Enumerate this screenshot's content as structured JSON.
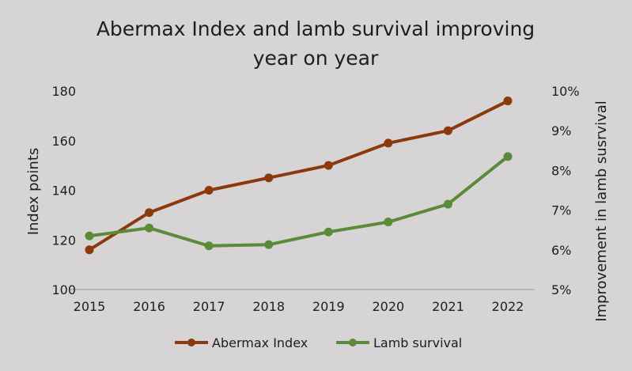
{
  "chart_data": {
    "type": "line",
    "title_lines": [
      "Abermax Index and lamb survival improving",
      "year on year"
    ],
    "categories": [
      "2015",
      "2016",
      "2017",
      "2018",
      "2019",
      "2020",
      "2021",
      "2022"
    ],
    "y_left": {
      "label": "Index points",
      "ylim": [
        100,
        180
      ],
      "ticks": [
        100,
        120,
        140,
        160,
        180
      ],
      "tick_labels": [
        "100",
        "120",
        "140",
        "160",
        "180"
      ]
    },
    "y_right": {
      "label": "Improvement in lamb susrvival",
      "ylim": [
        5,
        10
      ],
      "ticks": [
        5,
        6,
        7,
        8,
        9,
        10
      ],
      "tick_labels": [
        "5%",
        "6%",
        "7%",
        "8%",
        "9%",
        "10%"
      ]
    },
    "series": [
      {
        "name": "Abermax Index",
        "axis": "left",
        "color": "#8b3a0e",
        "values": [
          116,
          131,
          140,
          145,
          150,
          159,
          164,
          176
        ]
      },
      {
        "name": "Lamb survival",
        "axis": "right",
        "color": "#5b8a3a",
        "values": [
          6.35,
          6.55,
          6.1,
          6.13,
          6.45,
          6.7,
          7.15,
          8.35
        ]
      }
    ],
    "grid": false,
    "legend_position": "bottom"
  }
}
